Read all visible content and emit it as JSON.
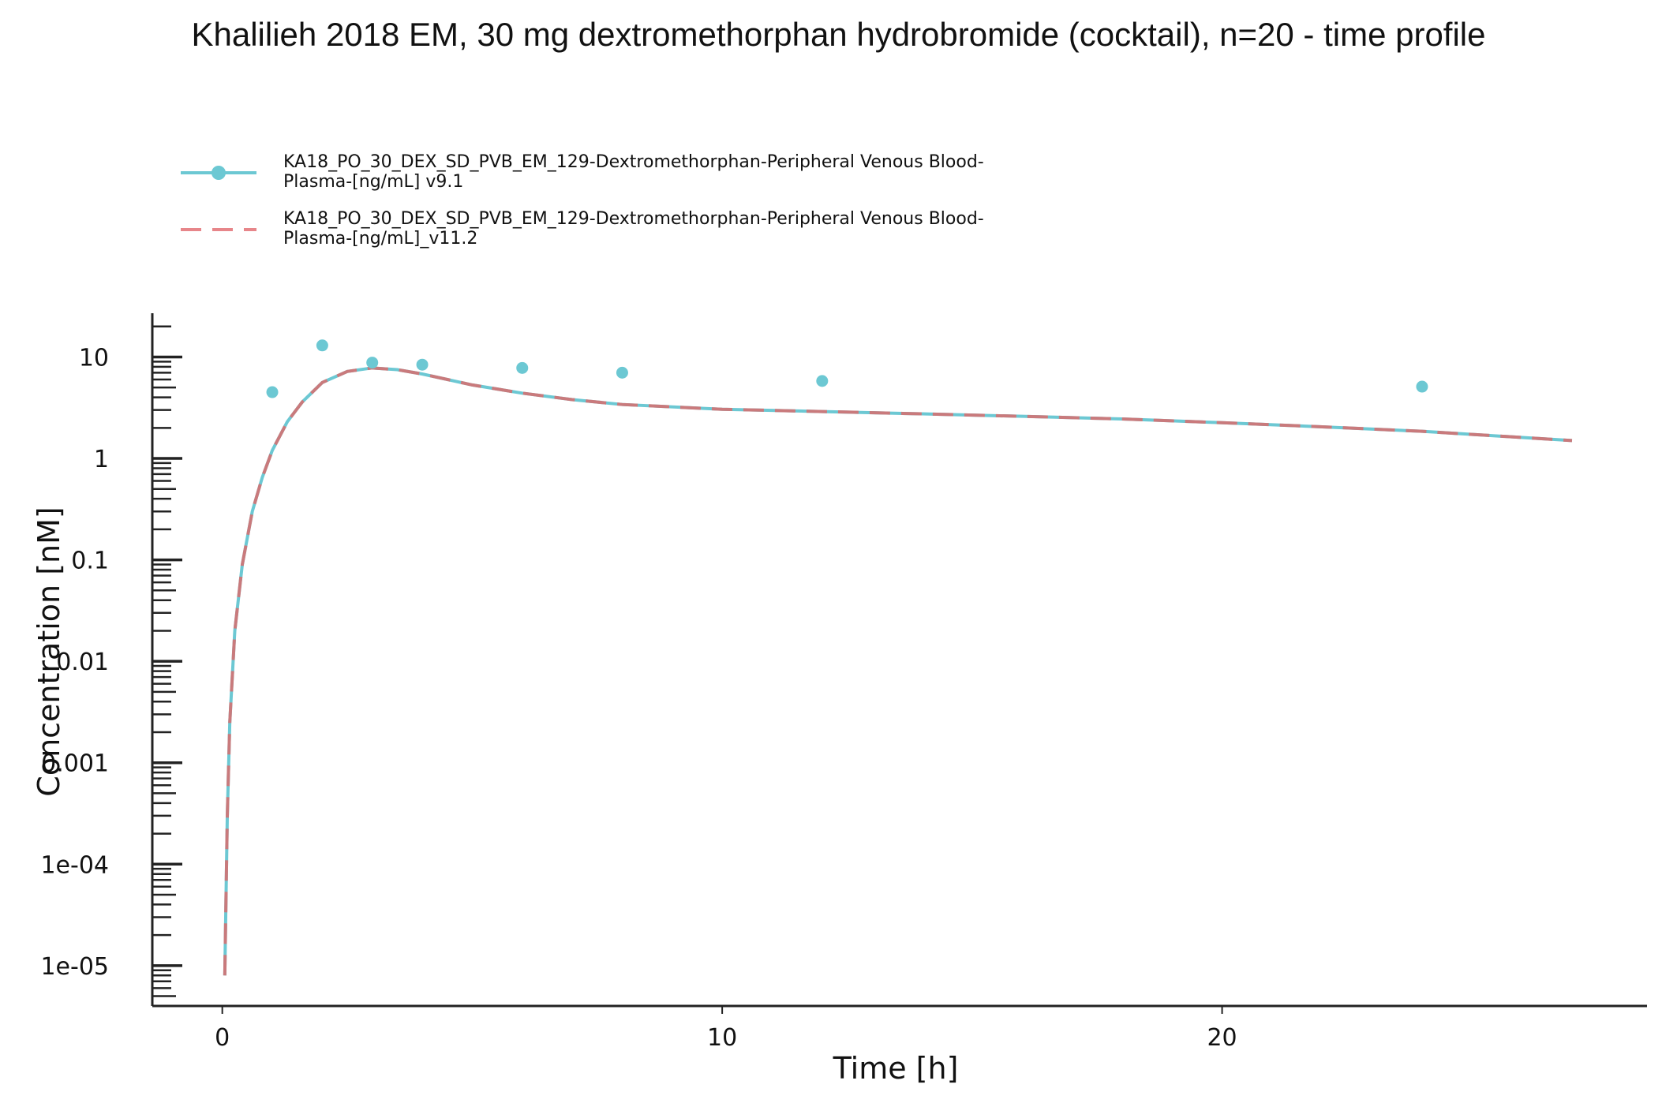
{
  "chart_data": {
    "type": "line",
    "title": "Khalilieh 2018 EM, 30 mg dextromethorphan hydrobromide (cocktail), n=20 - time profile",
    "xlabel": "Time [h]",
    "ylabel": "Concentration [nM]",
    "xlim": [
      -1.4,
      28.5
    ],
    "ylim": [
      4e-06,
      27
    ],
    "y_scale": "log",
    "x_ticks": [
      0,
      10,
      20
    ],
    "x_tick_labels": [
      "0",
      "10",
      "20"
    ],
    "y_ticks": [
      1e-05,
      0.0001,
      0.001,
      0.01,
      0.1,
      1,
      10
    ],
    "y_tick_labels": [
      "1e-05",
      "1e-04",
      "0.001",
      "0.01",
      "0.1",
      "1",
      "10"
    ],
    "grid": false,
    "legend_position": "top-left",
    "series": [
      {
        "name": "KA18_PO_30_DEX_SD_PVB_EM_129-Dextromethorphan-Peripheral Venous Blood-Plasma-[ng/mL] v9.1",
        "color": "#6cc8d3",
        "style": "solid line with points",
        "points": [
          {
            "x": 1,
            "y": 4.5
          },
          {
            "x": 2,
            "y": 13
          },
          {
            "x": 3,
            "y": 8.8
          },
          {
            "x": 4,
            "y": 8.4
          },
          {
            "x": 6,
            "y": 7.8
          },
          {
            "x": 8,
            "y": 7.0
          },
          {
            "x": 12,
            "y": 5.8
          },
          {
            "x": 24,
            "y": 5.1
          }
        ],
        "line": [
          {
            "x": 0.05,
            "y": 8e-06
          },
          {
            "x": 0.1,
            "y": 0.0003
          },
          {
            "x": 0.15,
            "y": 0.0025
          },
          {
            "x": 0.25,
            "y": 0.02
          },
          {
            "x": 0.4,
            "y": 0.09
          },
          {
            "x": 0.6,
            "y": 0.3
          },
          {
            "x": 0.8,
            "y": 0.65
          },
          {
            "x": 1.0,
            "y": 1.2
          },
          {
            "x": 1.3,
            "y": 2.3
          },
          {
            "x": 1.6,
            "y": 3.6
          },
          {
            "x": 2.0,
            "y": 5.6
          },
          {
            "x": 2.5,
            "y": 7.2
          },
          {
            "x": 3.0,
            "y": 7.8
          },
          {
            "x": 3.5,
            "y": 7.5
          },
          {
            "x": 4.0,
            "y": 6.8
          },
          {
            "x": 5.0,
            "y": 5.3
          },
          {
            "x": 6.0,
            "y": 4.4
          },
          {
            "x": 7.0,
            "y": 3.8
          },
          {
            "x": 8.0,
            "y": 3.4
          },
          {
            "x": 10.0,
            "y": 3.05
          },
          {
            "x": 12.0,
            "y": 2.9
          },
          {
            "x": 14.0,
            "y": 2.75
          },
          {
            "x": 16.0,
            "y": 2.6
          },
          {
            "x": 18.0,
            "y": 2.45
          },
          {
            "x": 20.0,
            "y": 2.25
          },
          {
            "x": 22.0,
            "y": 2.05
          },
          {
            "x": 24.0,
            "y": 1.85
          },
          {
            "x": 27.0,
            "y": 1.5
          }
        ]
      },
      {
        "name": "KA18_PO_30_DEX_SD_PVB_EM_129-Dextromethorphan-Peripheral Venous Blood-Plasma-[ng/mL]_v11.2",
        "color": "#e7868a",
        "style": "dashed line",
        "line": [
          {
            "x": 0.05,
            "y": 8e-06
          },
          {
            "x": 0.1,
            "y": 0.0003
          },
          {
            "x": 0.15,
            "y": 0.0025
          },
          {
            "x": 0.25,
            "y": 0.02
          },
          {
            "x": 0.4,
            "y": 0.09
          },
          {
            "x": 0.6,
            "y": 0.3
          },
          {
            "x": 0.8,
            "y": 0.65
          },
          {
            "x": 1.0,
            "y": 1.2
          },
          {
            "x": 1.3,
            "y": 2.3
          },
          {
            "x": 1.6,
            "y": 3.6
          },
          {
            "x": 2.0,
            "y": 5.6
          },
          {
            "x": 2.5,
            "y": 7.2
          },
          {
            "x": 3.0,
            "y": 7.8
          },
          {
            "x": 3.5,
            "y": 7.5
          },
          {
            "x": 4.0,
            "y": 6.8
          },
          {
            "x": 5.0,
            "y": 5.3
          },
          {
            "x": 6.0,
            "y": 4.4
          },
          {
            "x": 7.0,
            "y": 3.8
          },
          {
            "x": 8.0,
            "y": 3.4
          },
          {
            "x": 10.0,
            "y": 3.05
          },
          {
            "x": 12.0,
            "y": 2.9
          },
          {
            "x": 14.0,
            "y": 2.75
          },
          {
            "x": 16.0,
            "y": 2.6
          },
          {
            "x": 18.0,
            "y": 2.45
          },
          {
            "x": 20.0,
            "y": 2.25
          },
          {
            "x": 22.0,
            "y": 2.05
          },
          {
            "x": 24.0,
            "y": 1.85
          },
          {
            "x": 27.0,
            "y": 1.5
          }
        ]
      }
    ]
  },
  "legend": {
    "entries": [
      {
        "line1": "KA18_PO_30_DEX_SD_PVB_EM_129-Dextromethorphan-Peripheral Venous Blood-",
        "line2": "Plasma-[ng/mL] v9.1"
      },
      {
        "line1": "KA18_PO_30_DEX_SD_PVB_EM_129-Dextromethorphan-Peripheral Venous Blood-",
        "line2": "Plasma-[ng/mL]_v11.2"
      }
    ]
  }
}
